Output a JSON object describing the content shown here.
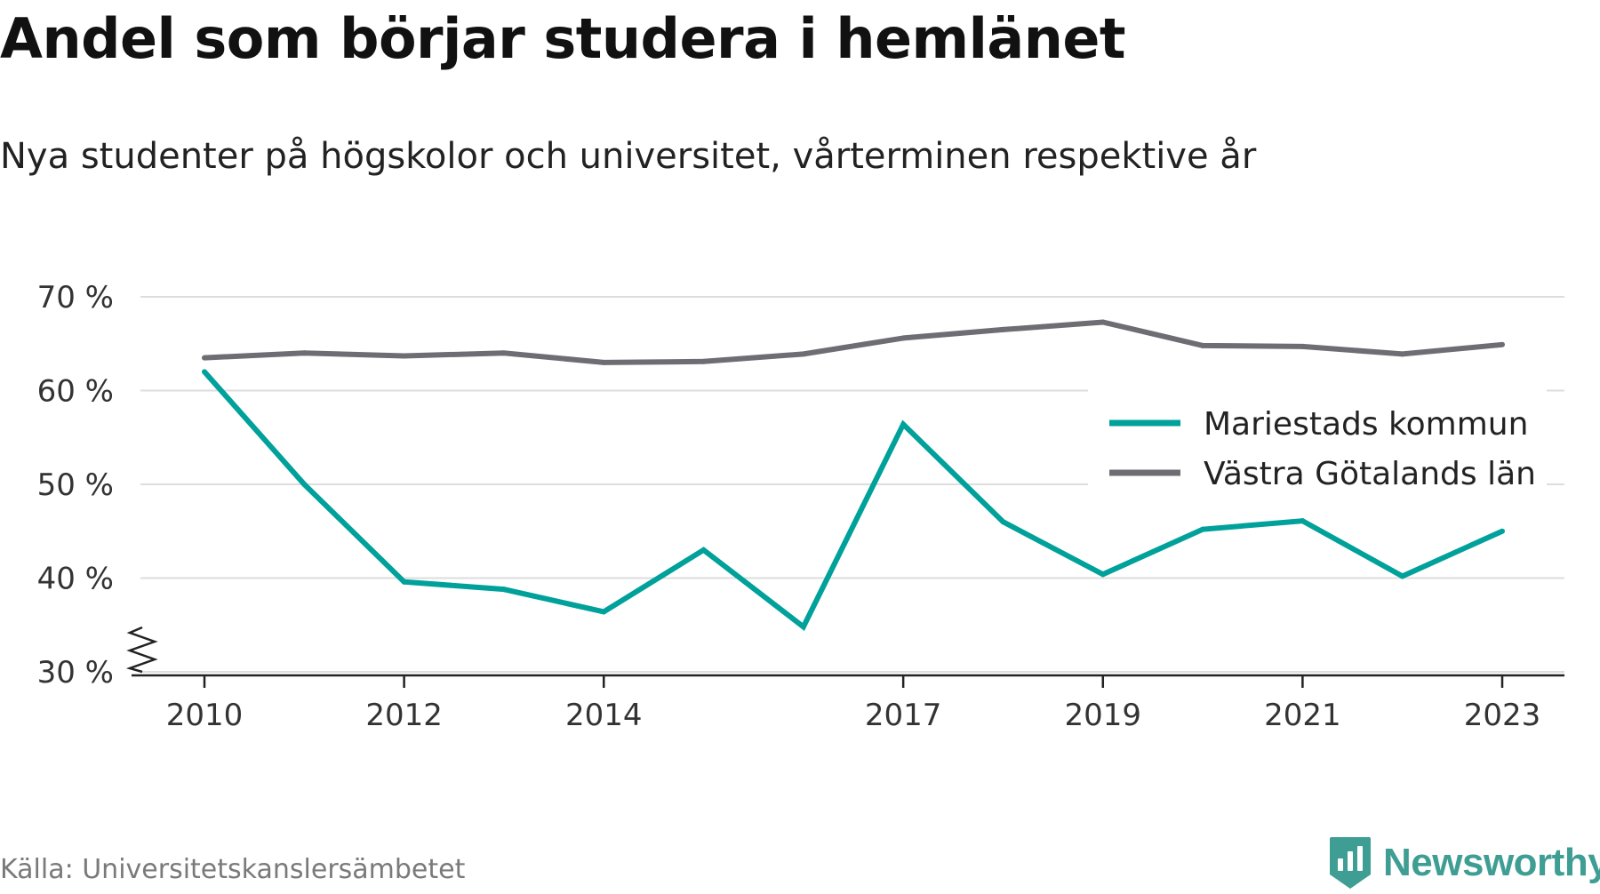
{
  "header": {
    "title": "Andel som börjar studera i hemlänet",
    "subtitle": "Nya studenter på högskolor och universitet, vårterminen respektive år"
  },
  "footer": {
    "source": "Källa: Universitetskanslersämbetet",
    "brand": "Newsworthy",
    "brand_icon": "bar-chart-shield-icon",
    "brand_color": "#3f9e93"
  },
  "chart_data": {
    "type": "line",
    "title": "Andel som börjar studera i hemlänet",
    "subtitle": "Nya studenter på högskolor och universitet, vårterminen respektive år",
    "x": [
      2010,
      2011,
      2012,
      2013,
      2014,
      2015,
      2016,
      2017,
      2018,
      2019,
      2020,
      2021,
      2022,
      2023
    ],
    "x_ticks": [
      2010,
      2012,
      2014,
      2017,
      2019,
      2021,
      2023
    ],
    "y_ticks": [
      30,
      40,
      50,
      60,
      70
    ],
    "y_tick_suffix": " %",
    "ylim": [
      30,
      70
    ],
    "y_axis_break": true,
    "grid": true,
    "legend_position": "right",
    "series": [
      {
        "name": "Mariestads kommun",
        "color": "#00a19a",
        "values": [
          62.0,
          50.0,
          39.6,
          38.8,
          36.4,
          43.0,
          34.8,
          56.4,
          46.0,
          40.4,
          45.2,
          46.1,
          40.2,
          45.0
        ]
      },
      {
        "name": "Västra Götalands län",
        "color": "#6e6d73",
        "values": [
          63.5,
          64.0,
          63.7,
          64.0,
          63.0,
          63.1,
          63.9,
          65.6,
          66.5,
          67.3,
          64.8,
          64.7,
          63.9,
          64.9
        ]
      }
    ]
  }
}
